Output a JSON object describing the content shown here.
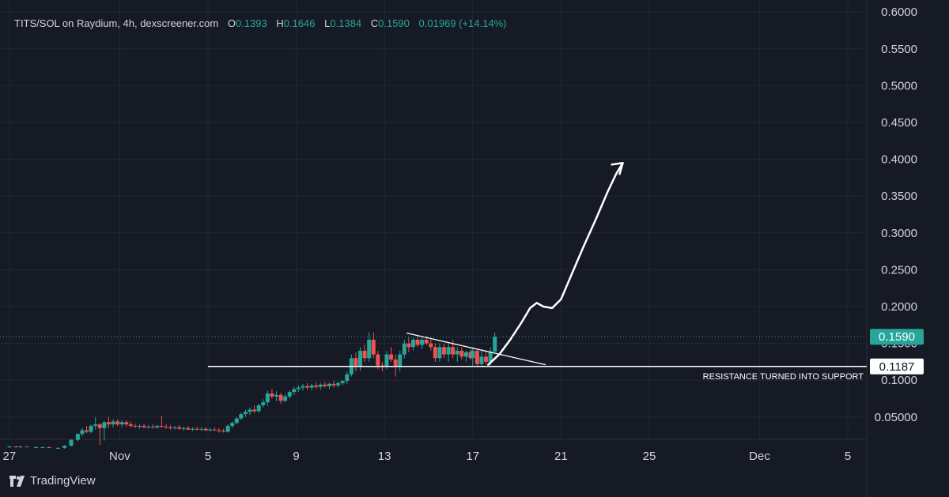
{
  "header": {
    "symbol": "TITS/SOL on Raydium, 4h, dexscreener.com",
    "open_label": "O",
    "open": "0.1393",
    "high_label": "H",
    "high": "0.1646",
    "low_label": "L",
    "low": "0.1384",
    "close_label": "C",
    "close": "0.1590",
    "change": "0.01969 (+14.14%)"
  },
  "footer": {
    "brand": "TradingView"
  },
  "colors": {
    "background": "#161a25",
    "grid": "#232733",
    "up": "#26a69a",
    "down": "#ef5350",
    "text": "#d1d4dc",
    "annotation": "#ffffff"
  },
  "chart_data": {
    "type": "candlestick",
    "price_axis": {
      "ticks": [
        "0.6000",
        "0.5500",
        "0.5000",
        "0.4500",
        "0.4000",
        "0.3500",
        "0.3000",
        "0.2500",
        "0.2000",
        "0.1500",
        "0.1000",
        "0.05000"
      ],
      "ylim": [
        0.0,
        0.61
      ]
    },
    "time_axis": {
      "ticks": [
        {
          "label": "27",
          "day": 27.0
        },
        {
          "label": "Nov",
          "day": 32.0
        },
        {
          "label": "5",
          "day": 36.0
        },
        {
          "label": "9",
          "day": 40.0
        },
        {
          "label": "13",
          "day": 44.0
        },
        {
          "label": "17",
          "day": 48.0
        },
        {
          "label": "21",
          "day": 52.0
        },
        {
          "label": "25",
          "day": 56.0
        },
        {
          "label": "Dec",
          "day": 61.0
        },
        {
          "label": "5",
          "day": 65.0
        }
      ]
    },
    "current_price": {
      "value": 0.159,
      "label": "0.1590"
    },
    "support_level": {
      "value": 0.1187,
      "label": "0.1187",
      "annotation": "RESISTANCE TURNED INTO SUPPORT",
      "from_day": 36.0
    },
    "descending_trendline": [
      [
        45.0,
        0.164
      ],
      [
        51.3,
        0.121
      ]
    ],
    "projection_arrow": [
      [
        48.7,
        0.121
      ],
      [
        49.2,
        0.135
      ],
      [
        49.7,
        0.155
      ],
      [
        50.2,
        0.178
      ],
      [
        50.6,
        0.198
      ],
      [
        50.9,
        0.205
      ],
      [
        51.2,
        0.2
      ],
      [
        51.6,
        0.198
      ],
      [
        52.0,
        0.21
      ],
      [
        52.5,
        0.245
      ],
      [
        53.0,
        0.28
      ],
      [
        53.6,
        0.32
      ],
      [
        54.1,
        0.355
      ],
      [
        54.5,
        0.38
      ],
      [
        54.8,
        0.395
      ]
    ],
    "candles": [
      [
        27.0,
        0.01,
        0.011,
        0.008,
        0.01
      ],
      [
        27.3,
        0.01,
        0.011,
        0.009,
        0.009
      ],
      [
        27.5,
        0.009,
        0.011,
        0.008,
        0.01
      ],
      [
        27.8,
        0.01,
        0.01,
        0.009,
        0.009
      ],
      [
        28.2,
        0.009,
        0.01,
        0.008,
        0.009
      ],
      [
        28.5,
        0.009,
        0.01,
        0.008,
        0.009
      ],
      [
        28.8,
        0.009,
        0.01,
        0.008,
        0.008
      ],
      [
        29.2,
        0.008,
        0.009,
        0.007,
        0.008
      ],
      [
        29.5,
        0.008,
        0.012,
        0.007,
        0.011
      ],
      [
        29.8,
        0.011,
        0.02,
        0.01,
        0.019
      ],
      [
        30.1,
        0.019,
        0.028,
        0.017,
        0.027
      ],
      [
        30.3,
        0.027,
        0.035,
        0.024,
        0.032
      ],
      [
        30.5,
        0.032,
        0.038,
        0.028,
        0.03
      ],
      [
        30.7,
        0.03,
        0.04,
        0.028,
        0.038
      ],
      [
        30.9,
        0.038,
        0.05,
        0.033,
        0.04
      ],
      [
        31.1,
        0.04,
        0.042,
        0.012,
        0.035
      ],
      [
        31.3,
        0.035,
        0.045,
        0.018,
        0.043
      ],
      [
        31.5,
        0.043,
        0.05,
        0.035,
        0.04
      ],
      [
        31.7,
        0.04,
        0.047,
        0.036,
        0.044
      ],
      [
        31.9,
        0.044,
        0.047,
        0.038,
        0.04
      ],
      [
        32.1,
        0.04,
        0.046,
        0.036,
        0.043
      ],
      [
        32.3,
        0.043,
        0.046,
        0.037,
        0.04
      ],
      [
        32.5,
        0.04,
        0.044,
        0.036,
        0.038
      ],
      [
        32.7,
        0.038,
        0.041,
        0.035,
        0.037
      ],
      [
        32.9,
        0.037,
        0.04,
        0.034,
        0.038
      ],
      [
        33.1,
        0.038,
        0.041,
        0.035,
        0.036
      ],
      [
        33.3,
        0.036,
        0.039,
        0.034,
        0.037
      ],
      [
        33.5,
        0.037,
        0.04,
        0.034,
        0.036
      ],
      [
        33.7,
        0.036,
        0.039,
        0.034,
        0.038
      ],
      [
        33.9,
        0.038,
        0.052,
        0.035,
        0.037
      ],
      [
        34.1,
        0.037,
        0.04,
        0.034,
        0.036
      ],
      [
        34.3,
        0.036,
        0.039,
        0.033,
        0.035
      ],
      [
        34.5,
        0.035,
        0.038,
        0.033,
        0.036
      ],
      [
        34.7,
        0.036,
        0.039,
        0.033,
        0.034
      ],
      [
        34.9,
        0.034,
        0.037,
        0.031,
        0.035
      ],
      [
        35.1,
        0.035,
        0.038,
        0.032,
        0.033
      ],
      [
        35.3,
        0.033,
        0.036,
        0.031,
        0.034
      ],
      [
        35.5,
        0.034,
        0.037,
        0.032,
        0.033
      ],
      [
        35.7,
        0.033,
        0.036,
        0.031,
        0.034
      ],
      [
        35.9,
        0.034,
        0.036,
        0.031,
        0.032
      ],
      [
        36.1,
        0.032,
        0.035,
        0.03,
        0.033
      ],
      [
        36.3,
        0.033,
        0.036,
        0.031,
        0.032
      ],
      [
        36.5,
        0.032,
        0.035,
        0.029,
        0.031
      ],
      [
        36.7,
        0.031,
        0.034,
        0.029,
        0.03
      ],
      [
        36.9,
        0.03,
        0.04,
        0.029,
        0.038
      ],
      [
        37.1,
        0.038,
        0.044,
        0.035,
        0.042
      ],
      [
        37.3,
        0.042,
        0.05,
        0.04,
        0.048
      ],
      [
        37.5,
        0.048,
        0.056,
        0.046,
        0.054
      ],
      [
        37.7,
        0.054,
        0.06,
        0.05,
        0.057
      ],
      [
        37.9,
        0.057,
        0.063,
        0.053,
        0.06
      ],
      [
        38.1,
        0.06,
        0.066,
        0.055,
        0.058
      ],
      [
        38.3,
        0.058,
        0.068,
        0.056,
        0.066
      ],
      [
        38.5,
        0.066,
        0.074,
        0.063,
        0.07
      ],
      [
        38.7,
        0.07,
        0.086,
        0.065,
        0.082
      ],
      [
        38.9,
        0.082,
        0.088,
        0.075,
        0.078
      ],
      [
        39.1,
        0.078,
        0.085,
        0.072,
        0.08
      ],
      [
        39.3,
        0.08,
        0.083,
        0.068,
        0.072
      ],
      [
        39.5,
        0.072,
        0.082,
        0.07,
        0.078
      ],
      [
        39.7,
        0.078,
        0.086,
        0.075,
        0.084
      ],
      [
        39.9,
        0.084,
        0.091,
        0.08,
        0.088
      ],
      [
        40.1,
        0.088,
        0.093,
        0.084,
        0.09
      ],
      [
        40.3,
        0.09,
        0.095,
        0.086,
        0.092
      ],
      [
        40.5,
        0.092,
        0.096,
        0.087,
        0.09
      ],
      [
        40.7,
        0.09,
        0.095,
        0.086,
        0.093
      ],
      [
        40.9,
        0.093,
        0.097,
        0.088,
        0.091
      ],
      [
        41.1,
        0.091,
        0.096,
        0.087,
        0.094
      ],
      [
        41.3,
        0.094,
        0.098,
        0.09,
        0.092
      ],
      [
        41.5,
        0.092,
        0.097,
        0.088,
        0.095
      ],
      [
        41.7,
        0.095,
        0.099,
        0.09,
        0.093
      ],
      [
        41.9,
        0.093,
        0.098,
        0.09,
        0.096
      ],
      [
        42.1,
        0.096,
        0.1,
        0.093,
        0.099
      ],
      [
        42.3,
        0.099,
        0.112,
        0.095,
        0.108
      ],
      [
        42.5,
        0.108,
        0.135,
        0.105,
        0.13
      ],
      [
        42.7,
        0.13,
        0.138,
        0.112,
        0.118
      ],
      [
        42.9,
        0.118,
        0.145,
        0.113,
        0.14
      ],
      [
        43.1,
        0.14,
        0.148,
        0.125,
        0.13
      ],
      [
        43.3,
        0.13,
        0.165,
        0.125,
        0.155
      ],
      [
        43.5,
        0.155,
        0.165,
        0.13,
        0.135
      ],
      [
        43.7,
        0.135,
        0.14,
        0.115,
        0.12
      ],
      [
        43.9,
        0.12,
        0.125,
        0.112,
        0.118
      ],
      [
        44.1,
        0.118,
        0.14,
        0.115,
        0.135
      ],
      [
        44.3,
        0.135,
        0.145,
        0.125,
        0.128
      ],
      [
        44.5,
        0.128,
        0.135,
        0.105,
        0.118
      ],
      [
        44.7,
        0.118,
        0.14,
        0.112,
        0.135
      ],
      [
        44.9,
        0.135,
        0.155,
        0.13,
        0.15
      ],
      [
        45.1,
        0.15,
        0.158,
        0.138,
        0.145
      ],
      [
        45.3,
        0.145,
        0.158,
        0.14,
        0.155
      ],
      [
        45.5,
        0.155,
        0.16,
        0.145,
        0.148
      ],
      [
        45.7,
        0.148,
        0.158,
        0.142,
        0.155
      ],
      [
        45.9,
        0.155,
        0.16,
        0.148,
        0.15
      ],
      [
        46.1,
        0.15,
        0.155,
        0.14,
        0.145
      ],
      [
        46.3,
        0.145,
        0.15,
        0.125,
        0.13
      ],
      [
        46.5,
        0.13,
        0.15,
        0.125,
        0.145
      ],
      [
        46.7,
        0.145,
        0.15,
        0.13,
        0.135
      ],
      [
        46.9,
        0.135,
        0.15,
        0.125,
        0.145
      ],
      [
        47.1,
        0.145,
        0.155,
        0.13,
        0.135
      ],
      [
        47.3,
        0.135,
        0.145,
        0.125,
        0.14
      ],
      [
        47.5,
        0.14,
        0.145,
        0.128,
        0.132
      ],
      [
        47.7,
        0.132,
        0.14,
        0.125,
        0.138
      ],
      [
        47.9,
        0.138,
        0.142,
        0.128,
        0.13
      ],
      [
        48.0,
        0.13,
        0.145,
        0.12,
        0.14
      ],
      [
        48.2,
        0.14,
        0.142,
        0.118,
        0.122
      ],
      [
        48.4,
        0.122,
        0.14,
        0.118,
        0.132
      ],
      [
        48.6,
        0.132,
        0.14,
        0.122,
        0.125
      ],
      [
        48.8,
        0.125,
        0.145,
        0.12,
        0.139
      ],
      [
        49.0,
        0.139,
        0.1646,
        0.1384,
        0.159
      ]
    ]
  }
}
